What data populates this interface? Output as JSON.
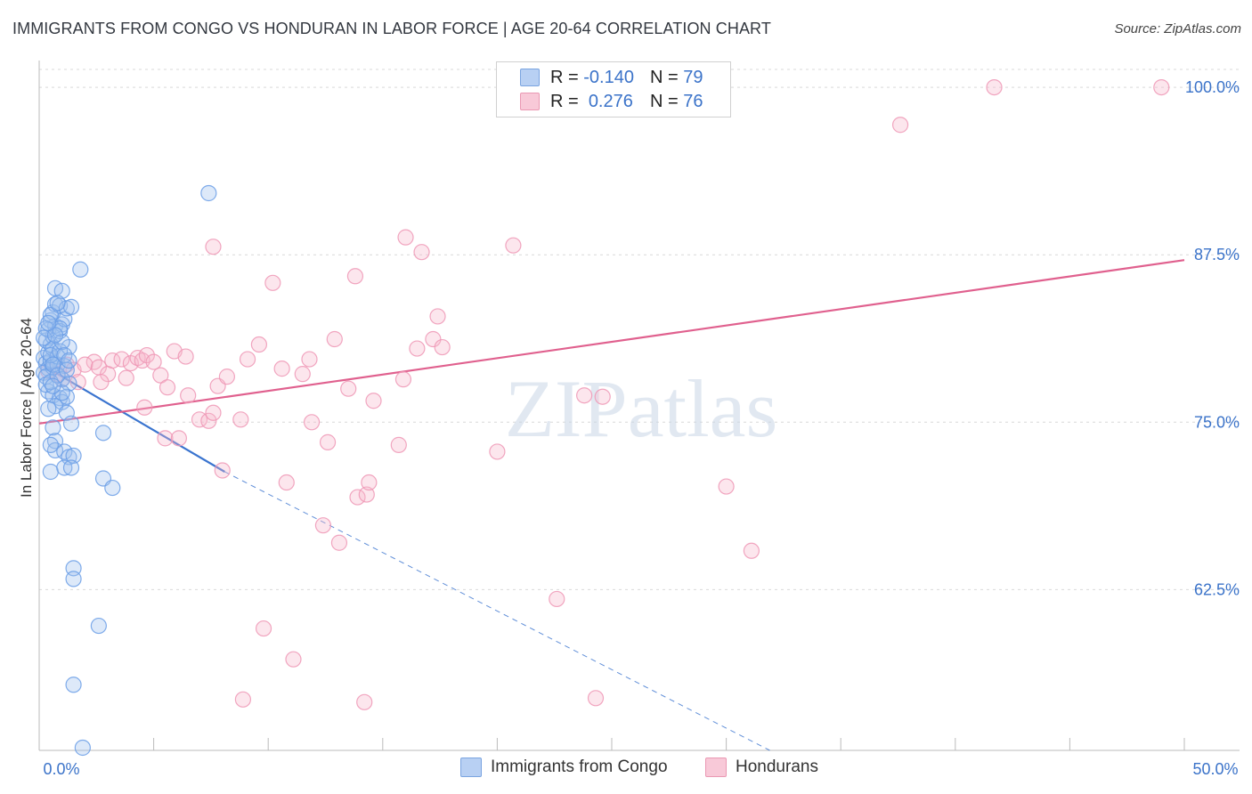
{
  "title": "IMMIGRANTS FROM CONGO VS HONDURAN IN LABOR FORCE | AGE 20-64 CORRELATION CHART",
  "source": "Source: ZipAtlas.com",
  "watermark": "ZIPatlas",
  "legend_top": {
    "blue": {
      "r_label": "R =",
      "r_value": "-0.140",
      "n_label": "N =",
      "n_value": "79"
    },
    "pink": {
      "r_label": "R =",
      "r_value": "0.276",
      "n_label": "N =",
      "n_value": "76"
    }
  },
  "bottom_legend": {
    "blue": "Immigrants from Congo",
    "pink": "Hondurans"
  },
  "colors": {
    "blue": "#6a9ee6",
    "blue_line": "#3a74cf",
    "pink": "#ef97b5",
    "pink_line": "#e0608e",
    "tick": "#3b73c9"
  },
  "chart_data": {
    "type": "scatter",
    "title": "IMMIGRANTS FROM CONGO VS HONDURAN IN LABOR FORCE | AGE 20-64 CORRELATION CHART",
    "xlabel": "",
    "ylabel": "In Labor Force | Age 20-64",
    "xlim": [
      0,
      50
    ],
    "ylim": [
      50.5,
      102
    ],
    "x_tick_labels": [
      "0.0%",
      "50.0%"
    ],
    "y_ticks": [
      62.5,
      75.0,
      87.5,
      100.0
    ],
    "y_tick_labels": [
      "62.5%",
      "75.0%",
      "87.5%",
      "100.0%"
    ],
    "series": [
      {
        "name": "Immigrants from Congo",
        "r": -0.14,
        "n": 79,
        "trend": {
          "x0": 0.2,
          "y0": 79.2,
          "x1": 8.1,
          "y1": 71.3,
          "dash_x1": 31.9,
          "dash_y1": 50.5
        },
        "points": [
          [
            0.2,
            79.8
          ],
          [
            0.3,
            79.4
          ],
          [
            0.4,
            79.0
          ],
          [
            0.2,
            78.7
          ],
          [
            0.5,
            79.6
          ],
          [
            0.6,
            79.1
          ],
          [
            0.3,
            78.4
          ],
          [
            0.8,
            79.3
          ],
          [
            0.4,
            80.2
          ],
          [
            0.5,
            80.8
          ],
          [
            0.3,
            81.1
          ],
          [
            0.6,
            81.4
          ],
          [
            0.4,
            81.9
          ],
          [
            0.7,
            82.2
          ],
          [
            0.5,
            82.6
          ],
          [
            1.0,
            82.3
          ],
          [
            0.9,
            81.8
          ],
          [
            1.1,
            82.7
          ],
          [
            0.6,
            83.2
          ],
          [
            0.7,
            83.8
          ],
          [
            0.9,
            83.7
          ],
          [
            1.2,
            83.5
          ],
          [
            1.4,
            83.6
          ],
          [
            0.7,
            85.0
          ],
          [
            1.0,
            84.8
          ],
          [
            0.5,
            83.0
          ],
          [
            0.3,
            82.0
          ],
          [
            0.6,
            80.5
          ],
          [
            1.3,
            80.6
          ],
          [
            0.8,
            79.9
          ],
          [
            1.1,
            79.2
          ],
          [
            1.0,
            78.2
          ],
          [
            1.3,
            77.9
          ],
          [
            0.4,
            77.3
          ],
          [
            0.6,
            77.0
          ],
          [
            0.9,
            76.8
          ],
          [
            1.0,
            76.5
          ],
          [
            1.2,
            76.9
          ],
          [
            0.7,
            76.2
          ],
          [
            1.2,
            75.7
          ],
          [
            1.4,
            74.9
          ],
          [
            0.6,
            74.6
          ],
          [
            0.7,
            73.6
          ],
          [
            0.7,
            72.9
          ],
          [
            1.1,
            72.8
          ],
          [
            1.3,
            72.4
          ],
          [
            1.5,
            72.5
          ],
          [
            0.5,
            71.3
          ],
          [
            1.1,
            71.6
          ],
          [
            1.4,
            71.6
          ],
          [
            2.8,
            74.2
          ],
          [
            2.8,
            70.8
          ],
          [
            3.2,
            70.1
          ],
          [
            1.8,
            86.4
          ],
          [
            7.4,
            92.1
          ],
          [
            1.5,
            64.1
          ],
          [
            1.5,
            63.3
          ],
          [
            2.6,
            59.8
          ],
          [
            1.5,
            55.4
          ],
          [
            1.9,
            50.7
          ],
          [
            0.5,
            80.0
          ],
          [
            0.9,
            80.3
          ],
          [
            0.2,
            81.3
          ],
          [
            1.0,
            81.0
          ],
          [
            0.8,
            83.9
          ],
          [
            0.3,
            77.8
          ],
          [
            0.5,
            78.0
          ],
          [
            1.0,
            77.2
          ],
          [
            0.6,
            79.3
          ],
          [
            0.8,
            78.5
          ],
          [
            0.4,
            76.0
          ],
          [
            1.2,
            78.9
          ],
          [
            0.9,
            82.0
          ],
          [
            0.7,
            81.5
          ],
          [
            0.4,
            82.4
          ],
          [
            1.1,
            80.0
          ],
          [
            0.6,
            77.7
          ],
          [
            1.3,
            79.6
          ],
          [
            0.5,
            73.3
          ]
        ]
      },
      {
        "name": "Hondurans",
        "r": 0.276,
        "n": 76,
        "trend": {
          "x0": 0,
          "y0": 74.9,
          "x1": 50,
          "y1": 87.1
        },
        "points": [
          [
            0.4,
            78.8
          ],
          [
            1.0,
            78.2
          ],
          [
            1.2,
            79.3
          ],
          [
            0.8,
            78.6
          ],
          [
            1.5,
            78.9
          ],
          [
            1.7,
            78.0
          ],
          [
            2.4,
            79.5
          ],
          [
            2.0,
            79.3
          ],
          [
            2.6,
            79.1
          ],
          [
            3.0,
            78.6
          ],
          [
            2.7,
            78.0
          ],
          [
            3.2,
            79.6
          ],
          [
            3.6,
            79.7
          ],
          [
            3.8,
            78.3
          ],
          [
            4.0,
            79.4
          ],
          [
            4.3,
            79.8
          ],
          [
            4.5,
            79.6
          ],
          [
            4.7,
            80.0
          ],
          [
            5.0,
            79.5
          ],
          [
            5.3,
            78.5
          ],
          [
            5.6,
            77.6
          ],
          [
            5.9,
            80.3
          ],
          [
            6.4,
            79.9
          ],
          [
            6.5,
            77.0
          ],
          [
            7.0,
            75.2
          ],
          [
            7.4,
            75.1
          ],
          [
            7.6,
            75.7
          ],
          [
            7.8,
            77.7
          ],
          [
            8.2,
            78.4
          ],
          [
            8.0,
            71.4
          ],
          [
            8.8,
            75.2
          ],
          [
            9.1,
            79.7
          ],
          [
            9.6,
            80.8
          ],
          [
            10.2,
            85.4
          ],
          [
            10.6,
            79.0
          ],
          [
            10.8,
            70.5
          ],
          [
            11.5,
            78.6
          ],
          [
            11.8,
            79.7
          ],
          [
            11.9,
            75.0
          ],
          [
            12.4,
            67.3
          ],
          [
            12.6,
            73.5
          ],
          [
            12.9,
            81.2
          ],
          [
            13.1,
            66.0
          ],
          [
            13.5,
            77.5
          ],
          [
            13.8,
            85.9
          ],
          [
            13.9,
            69.4
          ],
          [
            14.3,
            69.6
          ],
          [
            14.4,
            70.5
          ],
          [
            14.6,
            76.6
          ],
          [
            15.7,
            73.3
          ],
          [
            16.0,
            88.8
          ],
          [
            16.5,
            80.5
          ],
          [
            16.7,
            87.7
          ],
          [
            17.2,
            81.2
          ],
          [
            17.4,
            82.9
          ],
          [
            17.6,
            80.6
          ],
          [
            15.9,
            78.2
          ],
          [
            20.0,
            72.8
          ],
          [
            20.7,
            88.2
          ],
          [
            23.8,
            77.0
          ],
          [
            24.6,
            76.9
          ],
          [
            22.6,
            61.8
          ],
          [
            24.3,
            54.4
          ],
          [
            30.0,
            70.2
          ],
          [
            31.1,
            65.4
          ],
          [
            37.6,
            97.2
          ],
          [
            41.7,
            100.0
          ],
          [
            49.0,
            100.0
          ],
          [
            4.6,
            76.1
          ],
          [
            5.5,
            73.8
          ],
          [
            6.1,
            73.8
          ],
          [
            7.6,
            88.1
          ],
          [
            9.8,
            59.6
          ],
          [
            11.1,
            57.3
          ],
          [
            8.9,
            54.3
          ],
          [
            14.2,
            54.1
          ]
        ]
      }
    ]
  }
}
